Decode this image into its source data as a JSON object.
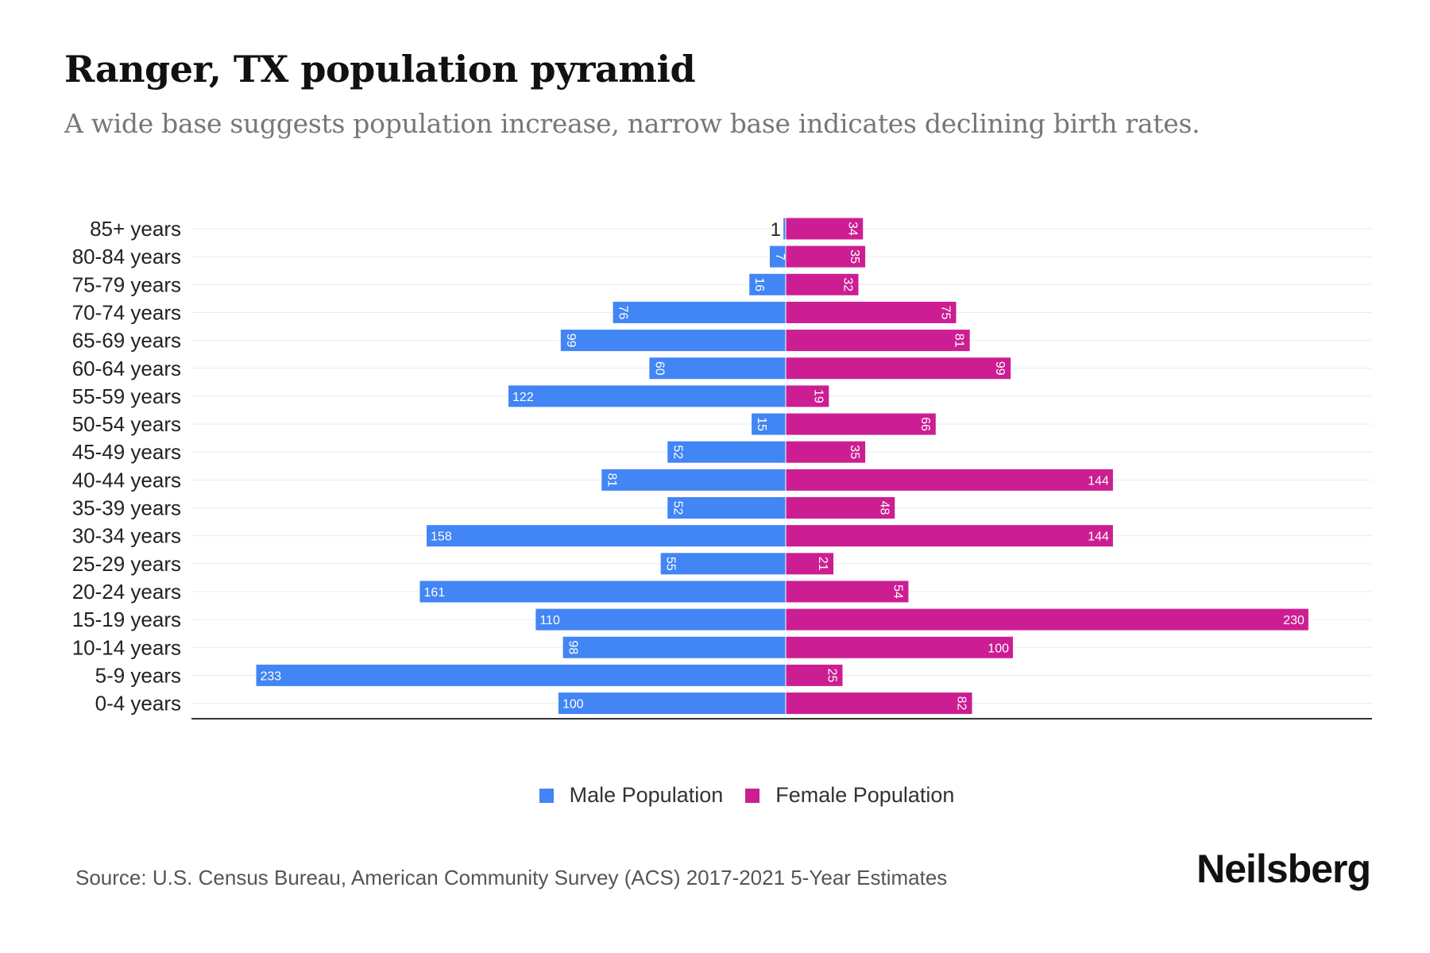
{
  "title": "Ranger, TX population pyramid",
  "subtitle": "A wide base suggests population increase, narrow base indicates declining birth rates.",
  "source": "Source: U.S. Census Bureau, American Community Survey (ACS) 2017-2021 5-Year Estimates",
  "logo": "Neilsberg",
  "colors": {
    "male": "#4285F4",
    "female": "#CC1E92"
  },
  "chart_data": {
    "type": "bar",
    "orientation": "horizontal-pyramid",
    "categories": [
      "85+ years",
      "80-84 years",
      "75-79 years",
      "70-74 years",
      "65-69 years",
      "60-64 years",
      "55-59 years",
      "50-54 years",
      "45-49 years",
      "40-44 years",
      "35-39 years",
      "30-34 years",
      "25-29 years",
      "20-24 years",
      "15-19 years",
      "10-14 years",
      "5-9 years",
      "0-4 years"
    ],
    "series": [
      {
        "name": "Male Population",
        "values": [
          1,
          7,
          16,
          76,
          99,
          60,
          122,
          15,
          52,
          81,
          52,
          158,
          55,
          161,
          110,
          98,
          233,
          100
        ]
      },
      {
        "name": "Female Population",
        "values": [
          34,
          35,
          32,
          75,
          81,
          99,
          19,
          66,
          35,
          144,
          48,
          144,
          21,
          54,
          230,
          100,
          25,
          82
        ]
      }
    ],
    "xlim": [
      -258,
      258
    ],
    "grid": true,
    "legend": "bottom-center"
  }
}
